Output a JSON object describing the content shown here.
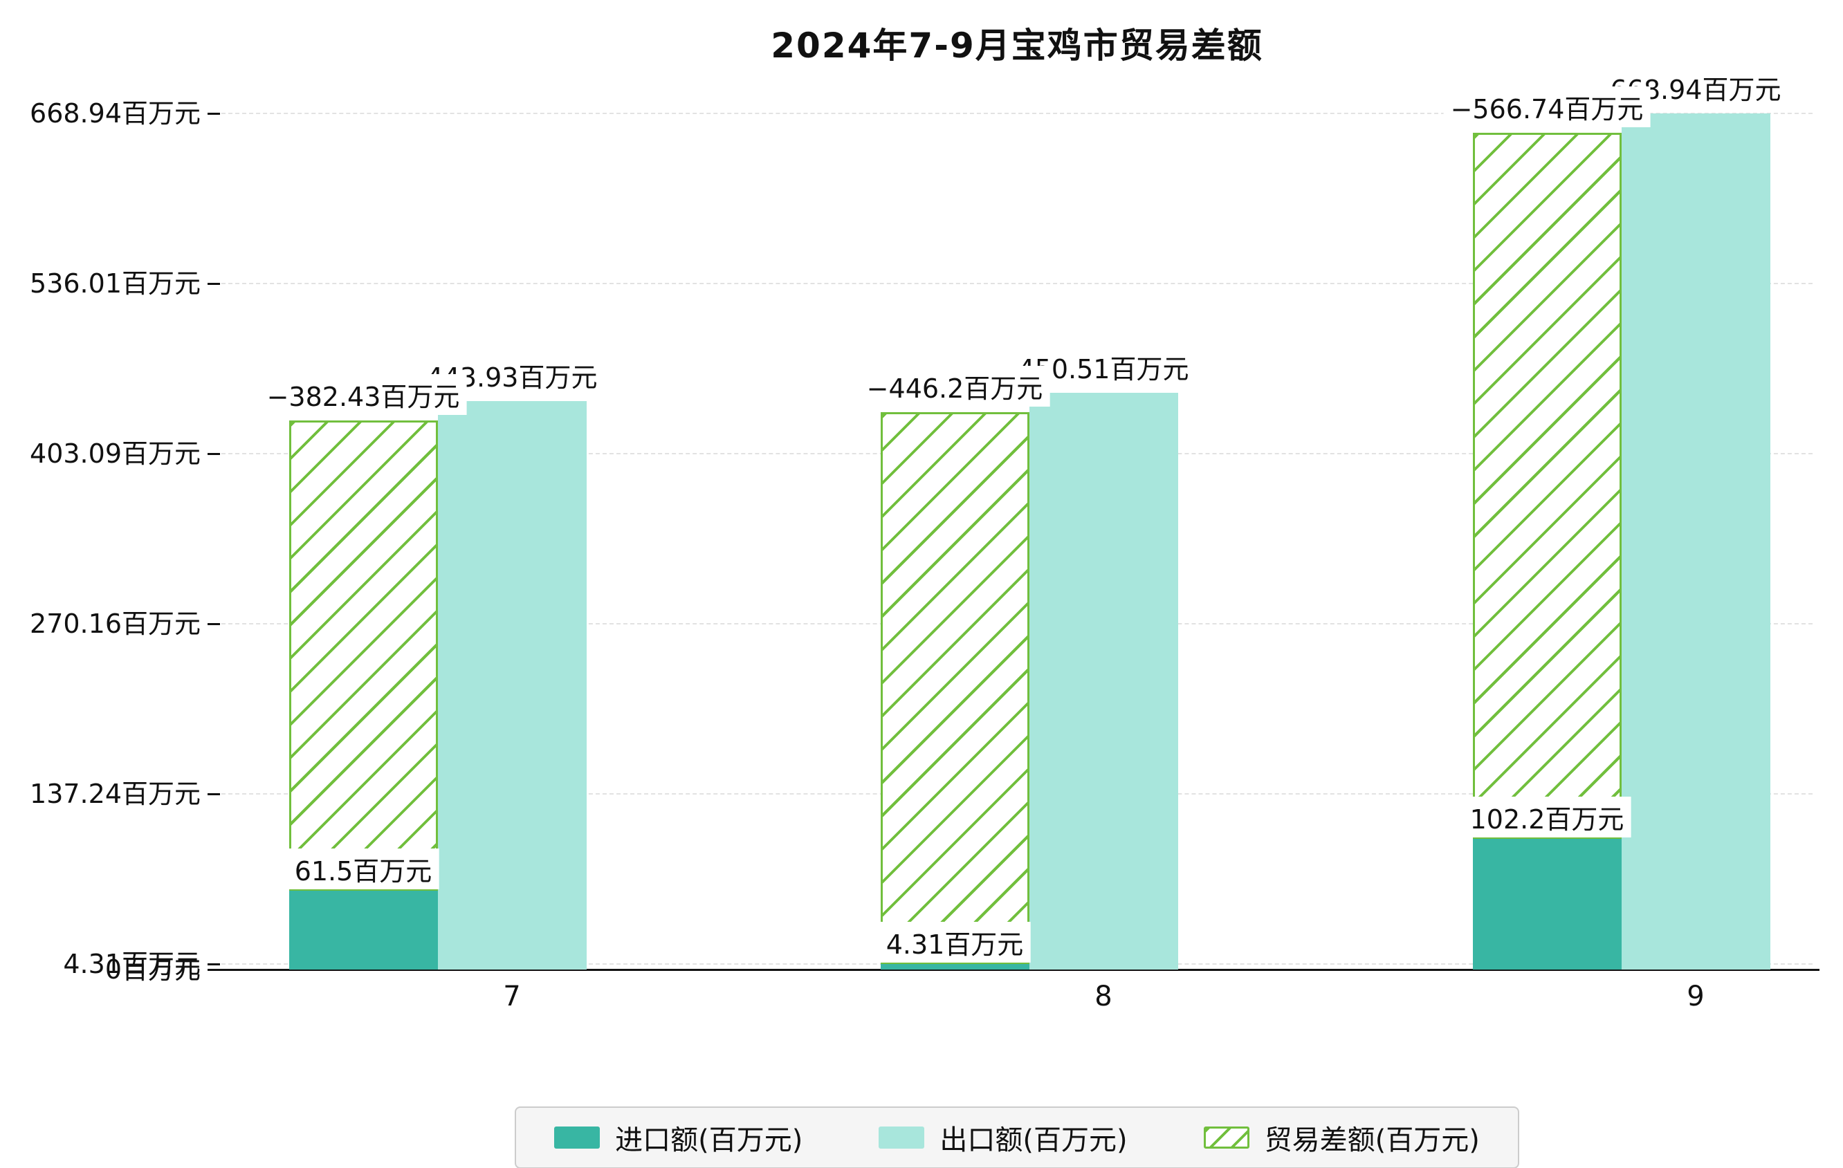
{
  "title": "2024年7-9月宝鸡市贸易差额",
  "chart_data": {
    "type": "bar",
    "title": "2024年7-9月宝鸡市贸易差额",
    "unit": "百万元",
    "categories": [
      "7",
      "8",
      "9"
    ],
    "series": [
      {
        "name": "进口额(百万元)",
        "style": "solid",
        "color": "#38b6a3",
        "values": [
          61.5,
          4.31,
          102.2
        ],
        "data_labels": [
          "61.5百万元",
          "4.31百万元",
          "102.2百万元"
        ]
      },
      {
        "name": "出口额(百万元)",
        "style": "solid",
        "color": "#a8e6dc",
        "values": [
          443.93,
          450.51,
          668.94
        ],
        "data_labels": [
          "443.93百万元",
          "450.51百万元",
          "668.94百万元"
        ]
      },
      {
        "name": "贸易差额(百万元)",
        "style": "hatched",
        "color": "#71bf3d",
        "values": [
          -382.43,
          -446.2,
          -566.74
        ],
        "data_labels": [
          "−382.43百万元",
          "−446.2百万元",
          "−566.74百万元"
        ],
        "render": "stacked-on-import"
      }
    ],
    "y_axis": {
      "range": [
        0,
        668.94
      ],
      "ticks": [
        {
          "label": "668.94百万元",
          "value": 668.94
        },
        {
          "label": "536.01百万元",
          "value": 536.01
        },
        {
          "label": "403.09百万元",
          "value": 403.09
        },
        {
          "label": "270.16百万元",
          "value": 270.16
        },
        {
          "label": "137.24百万元",
          "value": 137.24
        },
        {
          "label": "4.31百万元",
          "value": 4.31
        },
        {
          "label": "0百万元",
          "value": 0
        }
      ]
    },
    "x_axis": {
      "labels": [
        "7",
        "8",
        "9"
      ]
    },
    "grid": {
      "horizontal": true,
      "style": "dashed"
    },
    "legend_position": "bottom"
  },
  "colors": {
    "import": "#38b6a3",
    "export": "#a8e6dc",
    "trade_balance": "#71bf3d",
    "grid": "#e2e2e2",
    "axis": "#111111"
  }
}
